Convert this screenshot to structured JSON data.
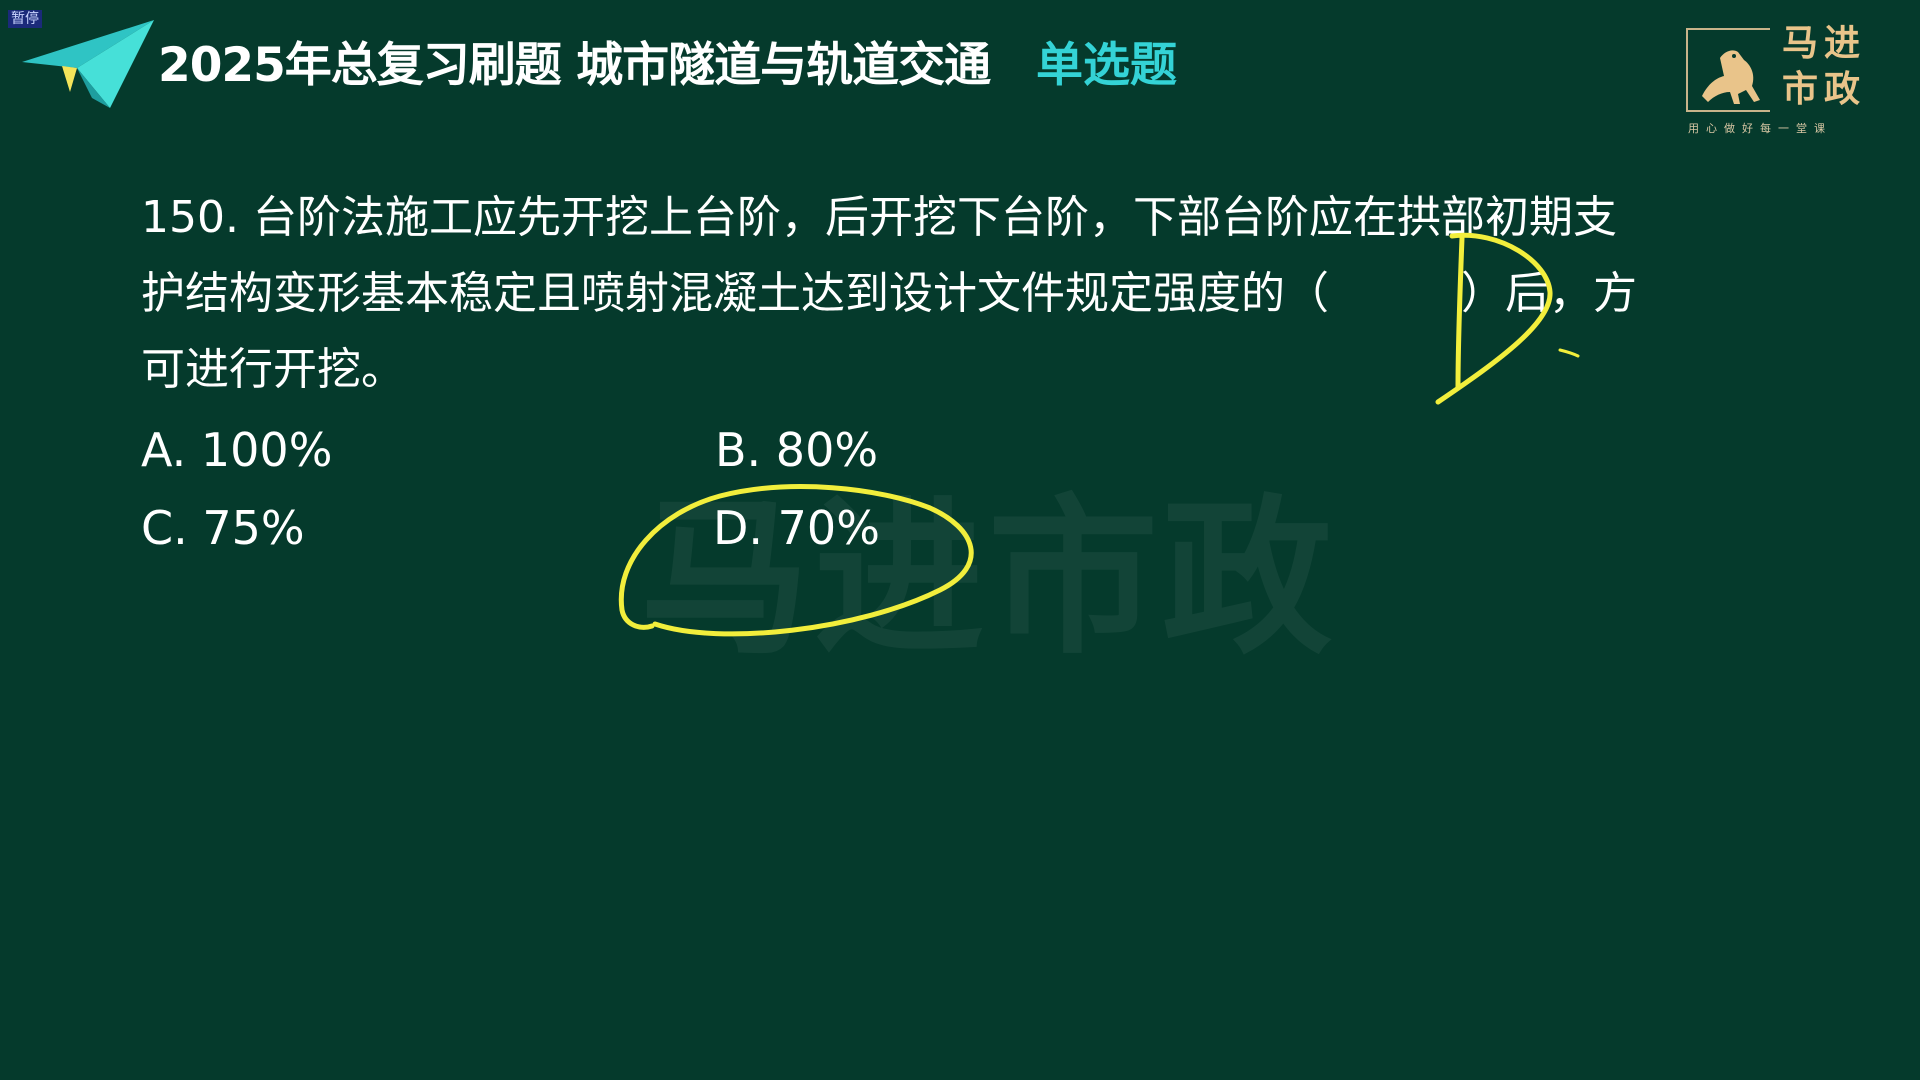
{
  "pause_badge": "暂停",
  "header": {
    "title": "2025年总复习刷题 城市隧道与轨道交通",
    "tag": "单选题"
  },
  "logo": {
    "line1": "马进",
    "line2": "市政",
    "slogan": "用心做好每一堂课"
  },
  "watermark": "马进市政",
  "question": {
    "line1": "150. 台阶法施工应先开挖上台阶，后开挖下台阶，下部台阶应在拱部初期支",
    "line2": "护结构变形基本稳定且喷射混凝土达到设计文件规定强度的（　　　）后，方",
    "line3": "可进行开挖。"
  },
  "options": {
    "a": "A. 100%",
    "b": "B. 80%",
    "c": "C. 75%",
    "d": "D. 70%"
  },
  "colors": {
    "background": "#053a2c",
    "accent": "#34d3d6",
    "annotation": "#f2ee3c",
    "logo_gold": "#e9c48a"
  }
}
